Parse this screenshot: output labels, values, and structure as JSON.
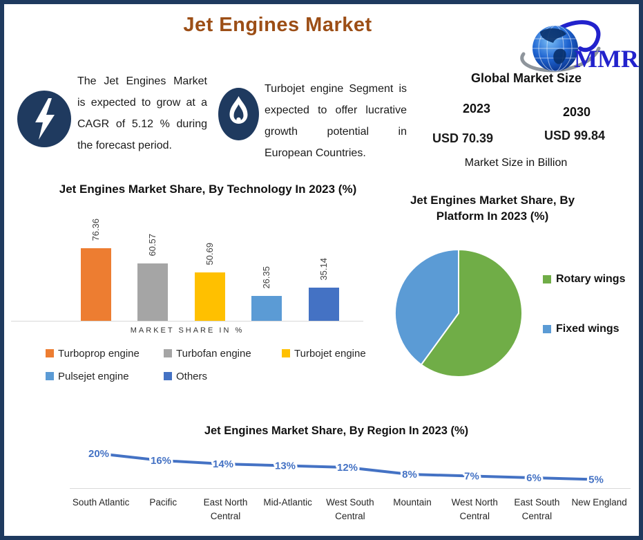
{
  "header": {
    "title": "Jet Engines Market",
    "title_color": "#9C4E16"
  },
  "callouts": [
    {
      "icon": "lightning-bolt",
      "lines": [
        "The Jet Engines Market",
        "is expected to grow at a",
        "CAGR of 5.12 % during",
        "the forecast period."
      ]
    },
    {
      "icon": "flame",
      "lines": [
        "Turbojet engine Segment is",
        "expected to offer lucrative",
        "growth potential in",
        "European Countries."
      ]
    }
  ],
  "market_panel": {
    "logo_text": "MMR",
    "heading": "Global Market Size",
    "columns": [
      {
        "year": "2023",
        "value": "USD 70.39"
      },
      {
        "year": "2030",
        "value": "USD 99.84"
      }
    ],
    "note": "Market Size in Billion",
    "value_color": "#8B4513"
  },
  "colors": {
    "frame_border": "#1F3A5F",
    "icon_navy": "#1F3A5F",
    "axis_gray": "#D9D9D9",
    "logo_blue": "#2222CC"
  },
  "chart_data": [
    {
      "type": "bar",
      "title": "Jet Engines Market Share, By Technology In 2023 (%)",
      "categories": [
        "Turboprop engine",
        "Turbofan engine",
        "Turbojet engine",
        "Pulsejet engine",
        "Others"
      ],
      "values": [
        76.36,
        60.57,
        50.69,
        26.35,
        35.14
      ],
      "colors": [
        "#ED7D31",
        "#A5A5A5",
        "#FFC000",
        "#5B9BD5",
        "#4472C4"
      ],
      "xlabel": "MARKET SHARE IN %",
      "ylim": [
        0,
        85
      ],
      "data_labels": true,
      "legend_position": "bottom",
      "grid": false
    },
    {
      "type": "pie",
      "title": "Jet Engines Market Share, By Platform In 2023 (%)",
      "labels": [
        "Rotary wings",
        "Fixed wings"
      ],
      "values": [
        60,
        40
      ],
      "colors": [
        "#70AD47",
        "#5B9BD5"
      ],
      "legend_position": "right",
      "note_values_estimated_from_slice_angles": true
    },
    {
      "type": "line",
      "title": "Jet Engines Market Share, By Region In 2023 (%)",
      "categories": [
        "South Atlantic",
        "Pacific",
        "East North Central",
        "Mid-Atlantic",
        "West South Central",
        "Mountain",
        "West North Central",
        "East South Central",
        "New England"
      ],
      "values": [
        20,
        16,
        14,
        13,
        12,
        8,
        7,
        6,
        5
      ],
      "data_labels": [
        "20%",
        "16%",
        "14%",
        "13%",
        "12%",
        "8%",
        "7%",
        "6%",
        "5%"
      ],
      "color": "#4472C4",
      "ylim": [
        0,
        22
      ],
      "grid": false
    }
  ]
}
